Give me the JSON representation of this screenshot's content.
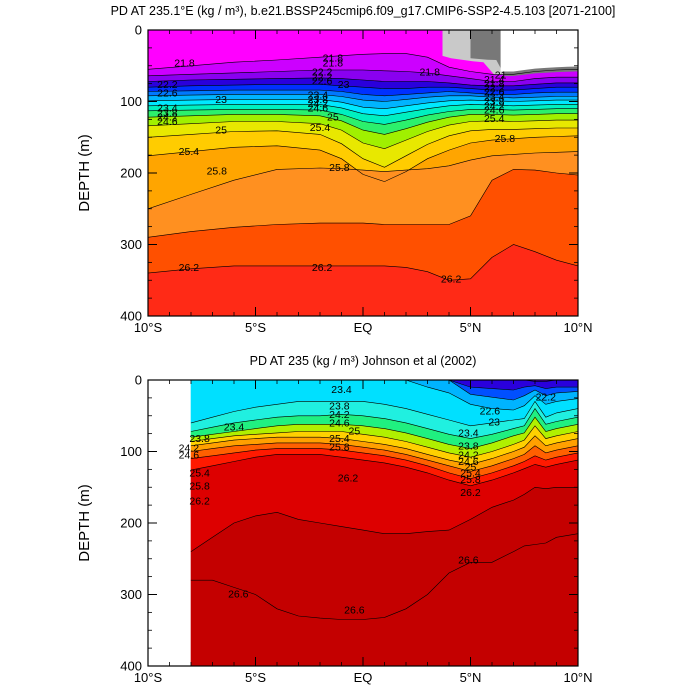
{
  "figure": {
    "colors": {
      "frame": "#000000",
      "background": "#ffffff",
      "land": [
        "#c9c9c9",
        "#787878"
      ]
    }
  },
  "chart_data": [
    {
      "type": "contour",
      "title": "PD AT 235.1°E (kg / m³), b.e21.BSSP245cmip6.f09_g17.CMIP6-SSP2-4.5.103 [2071-2100]",
      "ylabel": "DEPTH (m)",
      "xlim": [
        -10,
        10
      ],
      "ylim": [
        400,
        0
      ],
      "x_tick_labels": [
        "10°S",
        "5°S",
        "EQ",
        "5°N",
        "10°N"
      ],
      "y_tick_labels": [
        "0",
        "100",
        "200",
        "300",
        "400"
      ],
      "levels": [
        21.8,
        22.2,
        22.6,
        23.0,
        23.4,
        23.8,
        24.2,
        24.6,
        25.0,
        25.4,
        25.8,
        26.2
      ],
      "band_colors": [
        "#ff00ff",
        "#cc00ff",
        "#8a00f0",
        "#2a00dc",
        "#0030ff",
        "#0078ff",
        "#00b4ff",
        "#00e8ff",
        "#00f0c0",
        "#2cf06c",
        "#a0f000",
        "#e8e800",
        "#ffcc00",
        "#ffa500",
        "#ff9020",
        "#ff5000",
        "#ff2a16"
      ],
      "isopycnal_depths": [
        {
          "x": [
            -10,
            -7.5,
            -5,
            -2.5,
            0,
            2.5,
            5,
            7.5,
            10
          ],
          "y": [
            60,
            75,
            240,
            240,
            230,
            240,
            310,
            295,
            285
          ]
        }
      ],
      "contour_labels": [
        {
          "text": "21.8",
          "x": -8.3,
          "y": 47
        },
        {
          "text": "21.8",
          "x": -1.4,
          "y": 40
        },
        {
          "text": "21.8",
          "x": 3.1,
          "y": 60
        },
        {
          "text": "21",
          "x": 6.4,
          "y": 64
        },
        {
          "text": "21.4",
          "x": 6.1,
          "y": 70
        },
        {
          "text": "21.8",
          "x": 6.1,
          "y": 76
        },
        {
          "text": "21.8",
          "x": -1.4,
          "y": 47
        },
        {
          "text": "22.2",
          "x": -1.9,
          "y": 60
        },
        {
          "text": "22.2",
          "x": -9.1,
          "y": 77
        },
        {
          "text": "22.2",
          "x": -1.9,
          "y": 67
        },
        {
          "text": "22.6",
          "x": -1.9,
          "y": 72
        },
        {
          "text": "23",
          "x": -0.9,
          "y": 77
        },
        {
          "text": "22.2",
          "x": 6.1,
          "y": 82
        },
        {
          "text": "22.6",
          "x": -9.1,
          "y": 89
        },
        {
          "text": "22.6",
          "x": 6.1,
          "y": 88
        },
        {
          "text": "23",
          "x": -6.6,
          "y": 98
        },
        {
          "text": "23.4",
          "x": -2.1,
          "y": 92
        },
        {
          "text": "23.8",
          "x": -2.1,
          "y": 98
        },
        {
          "text": "24.2",
          "x": -2.1,
          "y": 104
        },
        {
          "text": "24.6",
          "x": -2.1,
          "y": 110
        },
        {
          "text": "23.4",
          "x": 6.1,
          "y": 95
        },
        {
          "text": "23.8",
          "x": 6.1,
          "y": 101
        },
        {
          "text": "24.2",
          "x": 6.1,
          "y": 107
        },
        {
          "text": "24.6",
          "x": 6.1,
          "y": 113
        },
        {
          "text": "23.4",
          "x": -9.1,
          "y": 110
        },
        {
          "text": "23.8",
          "x": -9.1,
          "y": 117
        },
        {
          "text": "24.2",
          "x": -9.1,
          "y": 123
        },
        {
          "text": "24.6",
          "x": -9.1,
          "y": 129
        },
        {
          "text": "25",
          "x": -1.4,
          "y": 123
        },
        {
          "text": "25.4",
          "x": 6.1,
          "y": 125
        },
        {
          "text": "25",
          "x": -6.6,
          "y": 141
        },
        {
          "text": "25.4",
          "x": -2.0,
          "y": 137
        },
        {
          "text": "25.8",
          "x": 6.6,
          "y": 153
        },
        {
          "text": "25.4",
          "x": -8.1,
          "y": 171
        },
        {
          "text": "25.8",
          "x": -1.1,
          "y": 193
        },
        {
          "text": "25.8",
          "x": -6.8,
          "y": 198
        },
        {
          "text": "26.2",
          "x": -8.1,
          "y": 333
        },
        {
          "text": "26.2",
          "x": -1.9,
          "y": 333
        },
        {
          "text": "26.2",
          "x": 4.1,
          "y": 349
        }
      ]
    },
    {
      "type": "contour",
      "title": "PD AT 235 (kg / m³) Johnson et al (2002)",
      "ylabel": "DEPTH (m)",
      "xlim": [
        -10,
        10
      ],
      "ylim": [
        400,
        0
      ],
      "x_tick_labels": [
        "10°S",
        "5°S",
        "EQ",
        "5°N",
        "10°N"
      ],
      "y_tick_labels": [
        "0",
        "100",
        "200",
        "300",
        "400"
      ],
      "data_x_range": [
        -8,
        10
      ],
      "levels": [
        23.4,
        23.8,
        24.2,
        24.6,
        25.0,
        25.4,
        25.8,
        26.2,
        26.6
      ],
      "band_colors": [
        "#7a00f0",
        "#2a00dc",
        "#0050ff",
        "#00b4ff",
        "#00e0ff",
        "#20f0e0",
        "#20f080",
        "#b0f000",
        "#ffd000",
        "#ffa000",
        "#ff6000",
        "#ff1a00",
        "#dd0000",
        "#c40000"
      ],
      "contour_labels": [
        {
          "text": "23.4",
          "x": -1.0,
          "y": 14
        },
        {
          "text": "23.8",
          "x": -1.1,
          "y": 37
        },
        {
          "text": "24.2",
          "x": -1.1,
          "y": 49
        },
        {
          "text": "24.6",
          "x": -1.1,
          "y": 61
        },
        {
          "text": "25",
          "x": -0.4,
          "y": 72
        },
        {
          "text": "25.4",
          "x": -1.1,
          "y": 83
        },
        {
          "text": "25.8",
          "x": -1.1,
          "y": 95
        },
        {
          "text": "23.4",
          "x": -6.0,
          "y": 67
        },
        {
          "text": "23.8",
          "x": -7.6,
          "y": 83
        },
        {
          "text": "24.2",
          "x": -8.1,
          "y": 96
        },
        {
          "text": "24.6",
          "x": -8.1,
          "y": 106
        },
        {
          "text": "22.6",
          "x": 5.9,
          "y": 44
        },
        {
          "text": "23",
          "x": 6.1,
          "y": 60
        },
        {
          "text": "22.2",
          "x": 8.5,
          "y": 25
        },
        {
          "text": "23.4",
          "x": 4.9,
          "y": 75
        },
        {
          "text": "23.8",
          "x": 4.9,
          "y": 93
        },
        {
          "text": "24.2",
          "x": 4.9,
          "y": 106
        },
        {
          "text": "24.6",
          "x": 4.9,
          "y": 115
        },
        {
          "text": "25",
          "x": 5.0,
          "y": 123
        },
        {
          "text": "25.4",
          "x": 5.0,
          "y": 131
        },
        {
          "text": "25.8",
          "x": 5.0,
          "y": 140
        },
        {
          "text": "25.4",
          "x": -7.6,
          "y": 131
        },
        {
          "text": "25.8",
          "x": -7.6,
          "y": 149
        },
        {
          "text": "26.2",
          "x": -7.6,
          "y": 170
        },
        {
          "text": "26.2",
          "x": -0.7,
          "y": 138
        },
        {
          "text": "26.2",
          "x": 5.0,
          "y": 158
        },
        {
          "text": "26.6",
          "x": 4.9,
          "y": 253
        },
        {
          "text": "26.6",
          "x": -5.8,
          "y": 300
        },
        {
          "text": "26.6",
          "x": -0.4,
          "y": 323
        }
      ]
    }
  ]
}
